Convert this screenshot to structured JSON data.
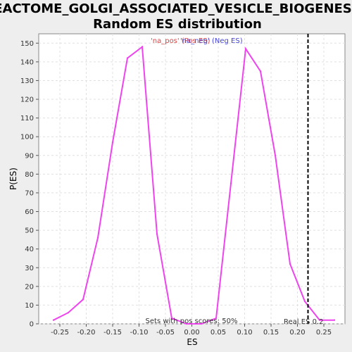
{
  "chart_data": {
    "type": "line",
    "title_line1": "REACTOME_GOLGI_ASSOCIATED_VESICLE_BIOGENESIS:",
    "title_line2": "Random ES distribution",
    "xlabel": "ES",
    "ylabel": "P(ES)",
    "xlim": [
      -0.29,
      0.29
    ],
    "ylim": [
      0,
      155
    ],
    "x_ticks": [
      -0.25,
      -0.2,
      -0.15,
      -0.1,
      -0.05,
      0.0,
      0.05,
      0.1,
      0.15,
      0.2,
      0.25
    ],
    "x_tick_labels": [
      "-0.25",
      "-0.20",
      "-0.15",
      "-0.10",
      "-0.05",
      "0.00",
      "0.05",
      "0.10",
      "0.15",
      "0.20",
      "0.25"
    ],
    "y_ticks": [
      0,
      10,
      20,
      30,
      40,
      50,
      60,
      70,
      80,
      90,
      100,
      110,
      120,
      130,
      140,
      150
    ],
    "grid": true,
    "series": [
      {
        "color": "#ee44ee",
        "x": [
          -0.262,
          -0.234,
          -0.206,
          -0.178,
          -0.15,
          -0.122,
          -0.094,
          -0.066,
          -0.038,
          -0.01,
          0.018,
          0.046,
          0.074,
          0.102,
          0.13,
          0.158,
          0.186,
          0.214,
          0.242,
          0.27
        ],
        "y": [
          2,
          6,
          13,
          46,
          97,
          142,
          148,
          48,
          3,
          0,
          0,
          3,
          75,
          147,
          135,
          90,
          32,
          12,
          2,
          2
        ]
      }
    ],
    "legend": {
      "placement": "top-center",
      "items": [
        {
          "label": "'na_pos' (Pos ES)",
          "color": "#dd4444"
        },
        {
          "label": "'na_neg' (Neg ES)",
          "color": "#4444dd"
        }
      ]
    },
    "real_es": {
      "value": 0.22,
      "label": "Real ES 0.2"
    },
    "pos_scores_label": "Sets with pos scores: 50%",
    "colors": {
      "background": "#eeeeee",
      "plot_bg": "#ffffff",
      "grid": "#e0e0e0",
      "line": "#ee44ee"
    }
  }
}
